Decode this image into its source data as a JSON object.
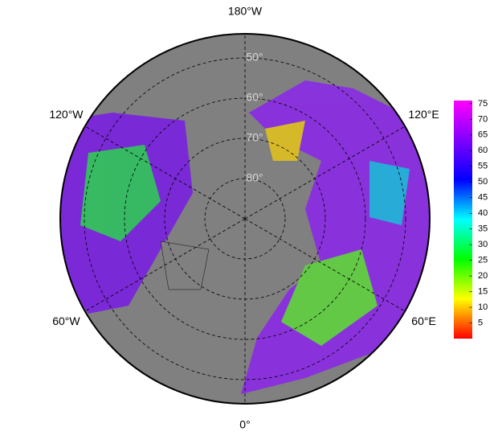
{
  "map": {
    "projection": "north-polar-stereographic",
    "lat_lim": [
      44,
      90
    ],
    "lat_ticks": [
      {
        "value": 50,
        "label": "50°"
      },
      {
        "value": 60,
        "label": "60°"
      },
      {
        "value": 70,
        "label": "70°"
      },
      {
        "value": 80,
        "label": "80°"
      }
    ],
    "lon_ticks": [
      {
        "value": 180,
        "label": "180°W"
      },
      {
        "value": 120,
        "label": "120°E"
      },
      {
        "value": 60,
        "label": "60°E"
      },
      {
        "value": 0,
        "label": "0°"
      },
      {
        "value": -60,
        "label": "60°W"
      },
      {
        "value": -120,
        "label": "120°W"
      }
    ],
    "ocean_color": "#808080",
    "colorbar": {
      "lim": [
        0,
        76
      ],
      "ticks": [
        5,
        10,
        15,
        20,
        25,
        30,
        35,
        40,
        45,
        50,
        55,
        60,
        65,
        70,
        75
      ],
      "colors": [
        "#ff0000",
        "#ffff00",
        "#00ff00",
        "#00ffff",
        "#0000ff",
        "#8000ff",
        "#ff00ff"
      ]
    }
  }
}
